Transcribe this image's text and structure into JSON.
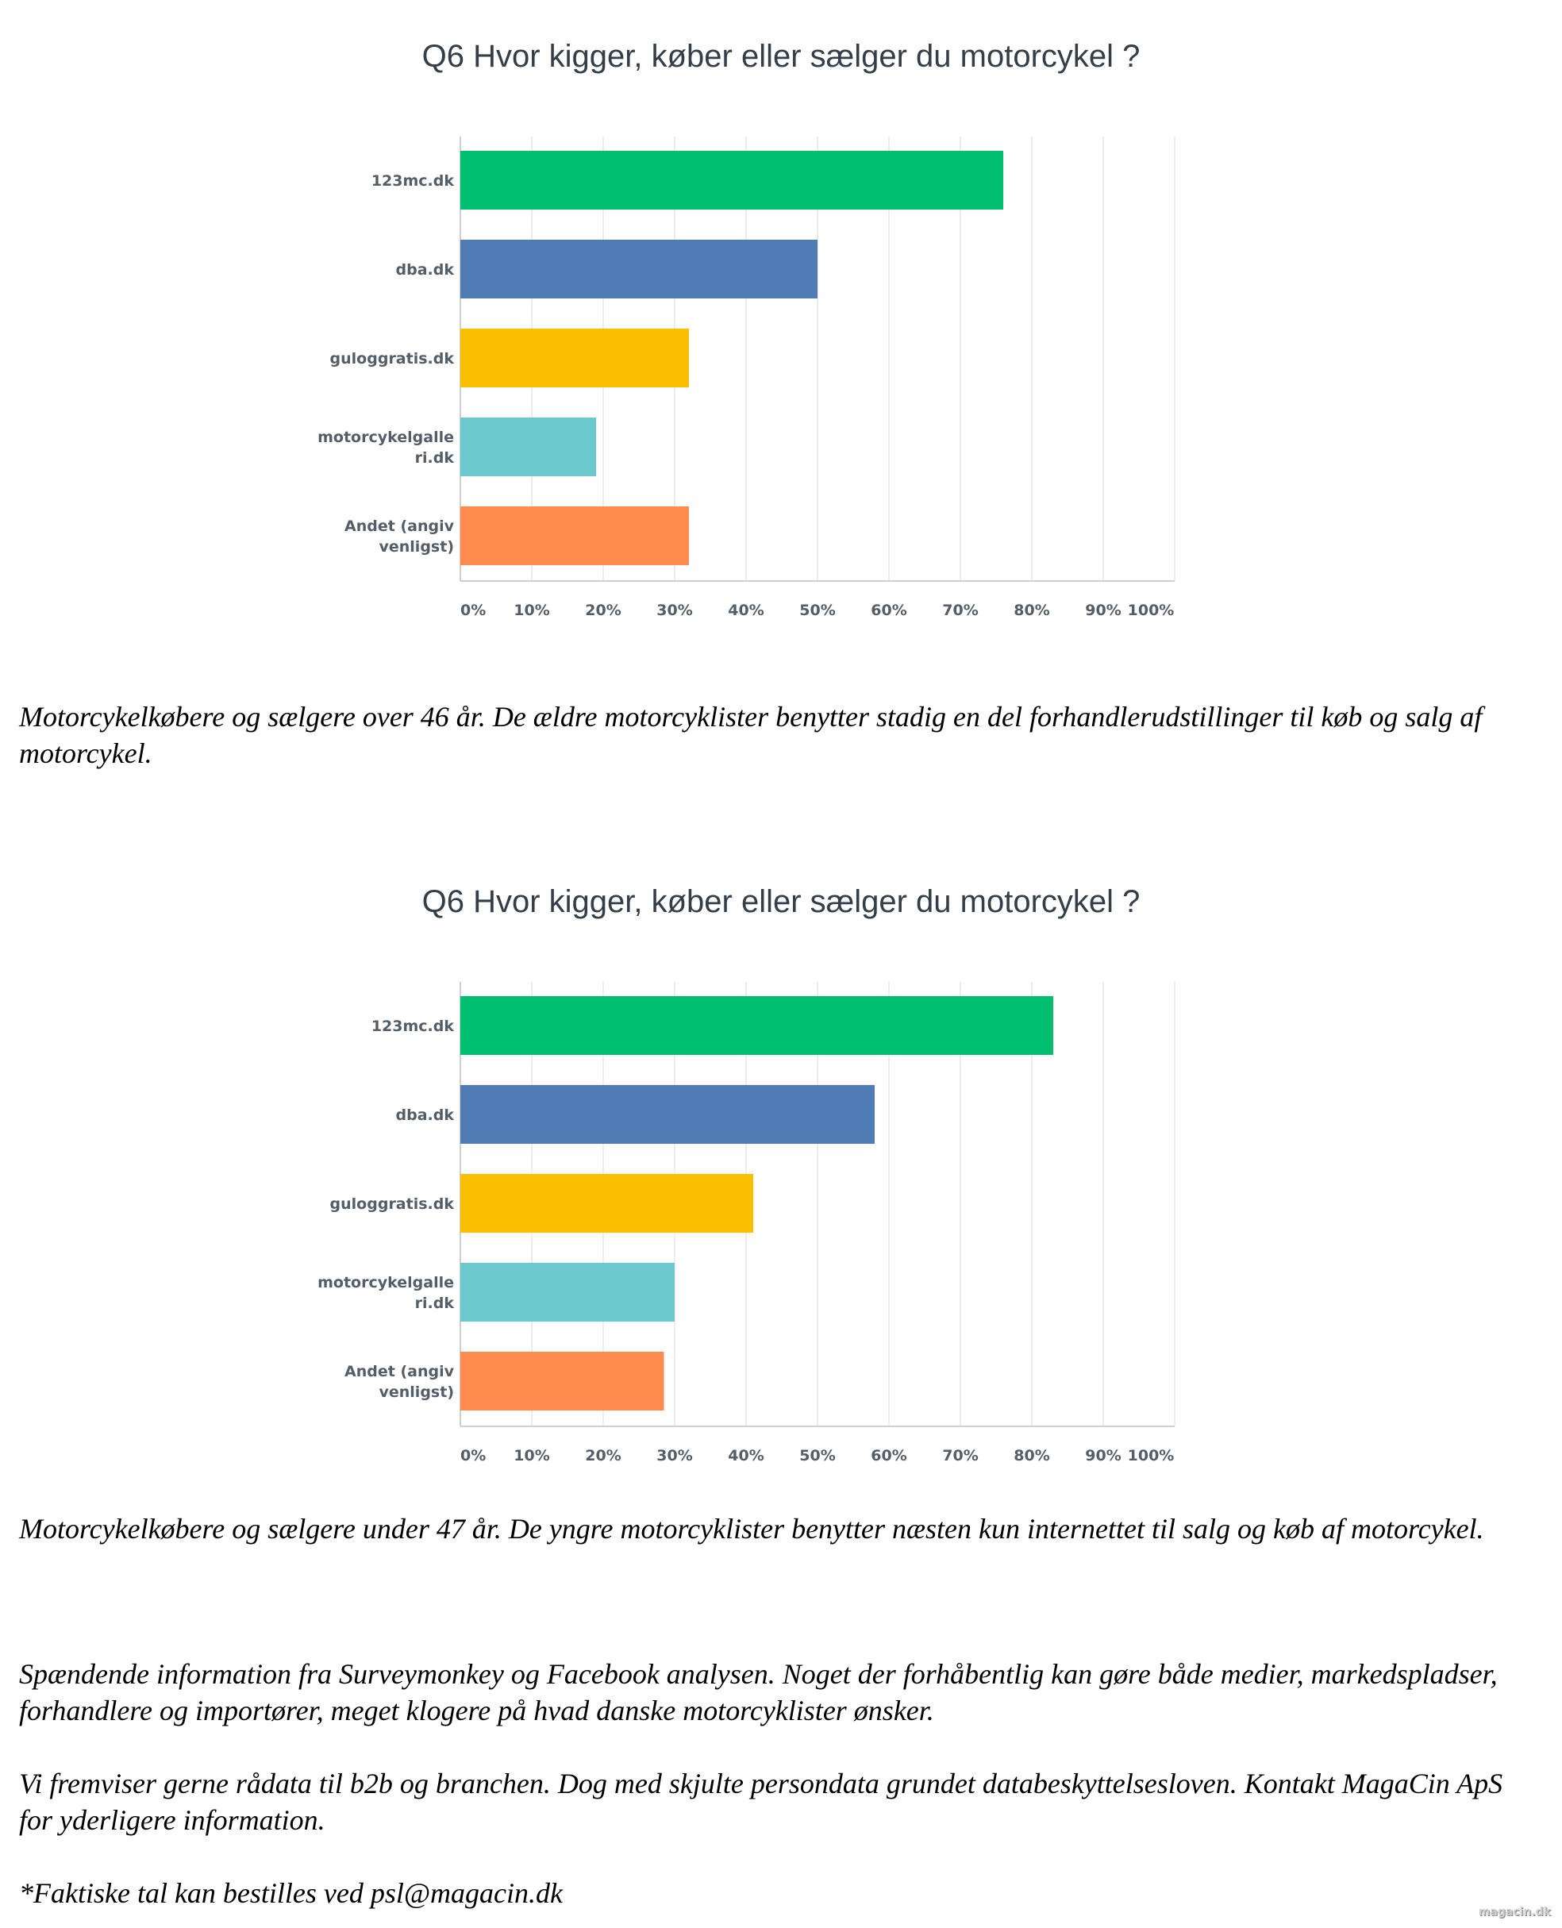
{
  "chart_data": [
    {
      "type": "bar",
      "orientation": "horizontal",
      "title": "Q6 Hvor kigger, køber eller sælger du motorcykel ?",
      "categories": [
        "123mc.dk",
        "dba.dk",
        "guloggratis.dk",
        "motorcykelgalleri.dk",
        "Andet (angiv venligst)"
      ],
      "category_lines": [
        [
          "123mc.dk"
        ],
        [
          "dba.dk"
        ],
        [
          "guloggratis.dk"
        ],
        [
          "motorcykelgalle",
          "ri.dk"
        ],
        [
          "Andet (angiv",
          "venligst)"
        ]
      ],
      "values": [
        76,
        50,
        32,
        19,
        32
      ],
      "colors": [
        "#00bf6f",
        "#507cb6",
        "#f9be00",
        "#6bc8cd",
        "#ff8b4f"
      ],
      "xlim": [
        0,
        100
      ],
      "xticks": [
        "0%",
        "10%",
        "20%",
        "30%",
        "40%",
        "50%",
        "60%",
        "70%",
        "80%",
        "90%",
        "100%"
      ],
      "grid": true,
      "xlabel": "",
      "ylabel": ""
    },
    {
      "type": "bar",
      "orientation": "horizontal",
      "title": "Q6 Hvor kigger, køber eller sælger du motorcykel ?",
      "categories": [
        "123mc.dk",
        "dba.dk",
        "guloggratis.dk",
        "motorcykelgalleri.dk",
        "Andet (angiv venligst)"
      ],
      "category_lines": [
        [
          "123mc.dk"
        ],
        [
          "dba.dk"
        ],
        [
          "guloggratis.dk"
        ],
        [
          "motorcykelgalle",
          "ri.dk"
        ],
        [
          "Andet (angiv",
          "venligst)"
        ]
      ],
      "values": [
        83,
        58,
        41,
        30,
        28.5
      ],
      "colors": [
        "#00bf6f",
        "#507cb6",
        "#f9be00",
        "#6bc8cd",
        "#ff8b4f"
      ],
      "xlim": [
        0,
        100
      ],
      "xticks": [
        "0%",
        "10%",
        "20%",
        "30%",
        "40%",
        "50%",
        "60%",
        "70%",
        "80%",
        "90%",
        "100%"
      ],
      "grid": true,
      "xlabel": "",
      "ylabel": ""
    }
  ],
  "text": {
    "caption_1": "Motorcykelkøbere og sælgere over 46 år. De ældre motorcyklister benytter stadig en del forhandlerudstillinger til køb og salg af motorcykel.",
    "caption_2": "Motorcykelkøbere og sælgere under 47 år. De yngre motorcyklister benytter næsten kun internettet til salg og køb af motorcykel.",
    "info": "Spændende information fra Surveymonkey og Facebook analysen. Noget der forhåbentlig kan gøre både medier, markedspladser, forhandlere og importører, meget klogere på hvad danske motorcyklister ønsker.",
    "rawdata": "Vi fremviser gerne rådata til b2b og branchen. Dog med skjulte persondata grundet databeskyttelsesloven. Kontakt MagaCin ApS for yderligere information.",
    "order": "*Faktiske tal kan bestilles ved psl@magacin.dk",
    "watermark": "magacin.dk"
  }
}
